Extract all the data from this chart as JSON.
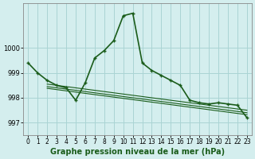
{
  "title": "Graphe pression niveau de la mer (hPa)",
  "background_color": "#d4eeee",
  "grid_color": "#aad4d4",
  "line_color": "#1a5c1a",
  "xlim": [
    -0.5,
    23.5
  ],
  "ylim": [
    996.5,
    1001.8
  ],
  "yticks": [
    997,
    998,
    999,
    1000
  ],
  "xticks": [
    0,
    1,
    2,
    3,
    4,
    5,
    6,
    7,
    8,
    9,
    10,
    11,
    12,
    13,
    14,
    15,
    16,
    17,
    18,
    19,
    20,
    21,
    22,
    23
  ],
  "main_series": [
    999.4,
    999.0,
    998.7,
    998.5,
    998.4,
    997.9,
    998.6,
    999.6,
    999.9,
    1000.3,
    1001.3,
    1001.4,
    999.4,
    999.1,
    998.9,
    998.7,
    998.5,
    997.9,
    997.8,
    997.75,
    997.8,
    997.75,
    997.7,
    997.2
  ],
  "trend_lines": [
    {
      "x0": 2,
      "y0": 998.55,
      "x1": 23,
      "y1": 997.5
    },
    {
      "x0": 2,
      "y0": 998.45,
      "x1": 23,
      "y1": 997.4
    },
    {
      "x0": 2,
      "y0": 998.38,
      "x1": 23,
      "y1": 997.32
    }
  ],
  "xlabel_fontsize": 7,
  "tick_fontsize": 5.5
}
